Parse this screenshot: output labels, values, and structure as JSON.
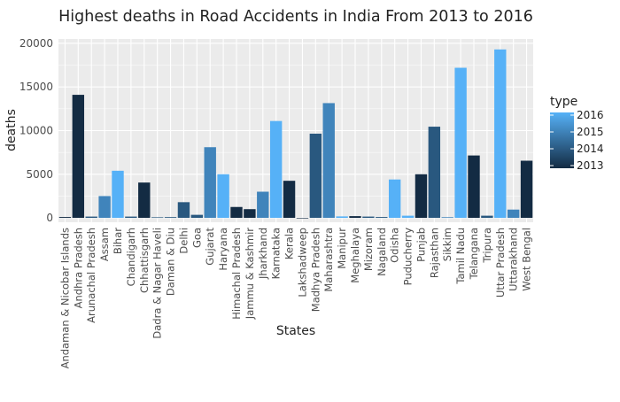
{
  "chart_data": {
    "type": "bar",
    "title": "Highest deaths in Road Accidents in India From 2013 to 2016",
    "xlabel": "States",
    "ylabel": "deaths",
    "ylim": [
      -500,
      20500
    ],
    "yticks": [
      0,
      5000,
      10000,
      15000,
      20000
    ],
    "grid": true,
    "legend": {
      "title": "type",
      "placement": "right",
      "labels": [
        "2016",
        "2015",
        "2014",
        "2013"
      ],
      "color_low": "#132b43",
      "color_high": "#56b1f7"
    },
    "categories": [
      "Andaman & Nicobar Islands",
      "Andhra Pradesh",
      "Arunachal Pradesh",
      "Assam",
      "Bihar",
      "Chandigarh",
      "Chhattisgarh",
      "Dadra & Nagar Haveli",
      "Daman & Diu",
      "Delhi",
      "Goa",
      "Gujarat",
      "Haryana",
      "Himachal Pradesh",
      "Jammu & Kashmir",
      "Jharkhand",
      "Karnataka",
      "Kerala",
      "Lakshadweep",
      "Madhya Pradesh",
      "Maharashtra",
      "Manipur",
      "Meghalaya",
      "Mizoram",
      "Nagaland",
      "Odisha",
      "Puducherry",
      "Punjab",
      "Rajasthan",
      "Sikkim",
      "Tamil Nadu",
      "Telangana",
      "Tripura",
      "Uttar Pradesh",
      "Uttarakhand",
      "West Bengal"
    ],
    "values": [
      100,
      14100,
      150,
      2500,
      5400,
      150,
      4050,
      70,
      90,
      1800,
      350,
      8100,
      5000,
      1250,
      1000,
      3000,
      11100,
      4250,
      5,
      9650,
      13150,
      170,
      200,
      150,
      100,
      4400,
      250,
      5000,
      10450,
      80,
      17200,
      7150,
      250,
      19300,
      950,
      6550
    ],
    "value_years": [
      2013,
      2013,
      2014,
      2015,
      2016,
      2014,
      2013,
      2014,
      2014,
      2014,
      2014,
      2015,
      2016,
      2013,
      2013,
      2015,
      2016,
      2013,
      2013,
      2014,
      2015,
      2016,
      2013,
      2014,
      2014,
      2016,
      2016,
      2013,
      2014,
      2015,
      2016,
      2013,
      2014,
      2016,
      2015,
      2013
    ]
  }
}
